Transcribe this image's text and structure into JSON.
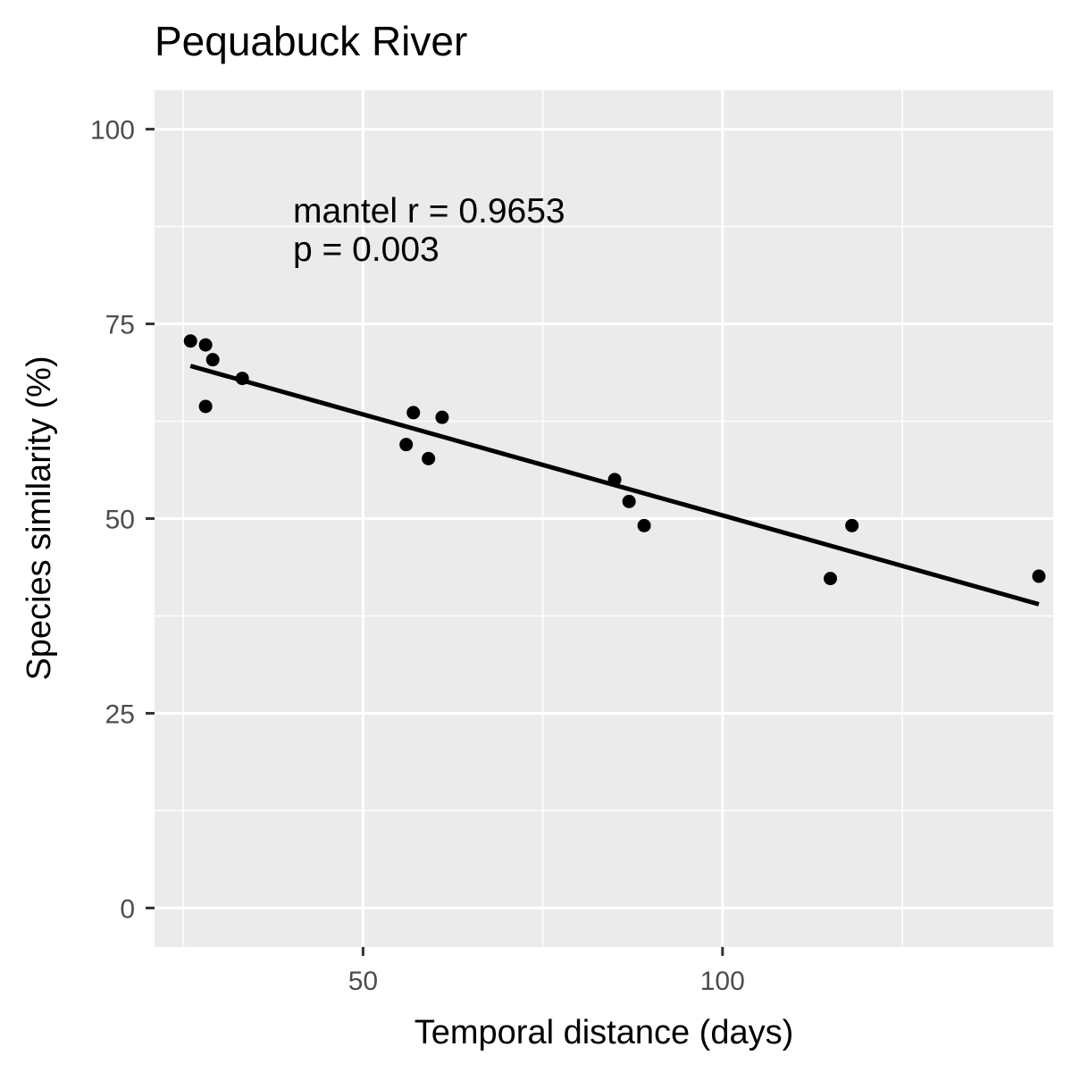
{
  "chart_data": {
    "type": "scatter",
    "title": "Pequabuck River",
    "xlabel": "Temporal distance (days)",
    "ylabel": "Species similarity (%)",
    "xlim": [
      21,
      146
    ],
    "ylim": [
      -5,
      105
    ],
    "x_ticks": [
      50,
      100
    ],
    "x_tick_labels": [
      "50",
      "100"
    ],
    "y_ticks": [
      0,
      25,
      50,
      75,
      100
    ],
    "y_tick_labels": [
      "0",
      "25",
      "50",
      "75",
      "100"
    ],
    "grid": true,
    "legend": "none",
    "points": [
      {
        "x": 26.0,
        "y": 72.8
      },
      {
        "x": 28.1,
        "y": 72.3
      },
      {
        "x": 28.1,
        "y": 64.4
      },
      {
        "x": 29.1,
        "y": 70.4
      },
      {
        "x": 33.2,
        "y": 68.0
      },
      {
        "x": 56.0,
        "y": 59.5
      },
      {
        "x": 57.0,
        "y": 63.6
      },
      {
        "x": 59.1,
        "y": 57.7
      },
      {
        "x": 61.0,
        "y": 63.0
      },
      {
        "x": 85.0,
        "y": 55.0
      },
      {
        "x": 87.0,
        "y": 52.2
      },
      {
        "x": 89.1,
        "y": 49.1
      },
      {
        "x": 115.0,
        "y": 42.3
      },
      {
        "x": 118.0,
        "y": 49.1
      },
      {
        "x": 144.0,
        "y": 42.6
      }
    ],
    "fit_line": {
      "x": [
        26.0,
        144.0
      ],
      "y": [
        69.6,
        39.0
      ]
    },
    "annotation": [
      "mantel r = 0.9653",
      "p = 0.003"
    ],
    "colors": {
      "panel": "#ebebeb",
      "grid": "#ffffff",
      "points": "#000000",
      "line": "#000000"
    }
  }
}
